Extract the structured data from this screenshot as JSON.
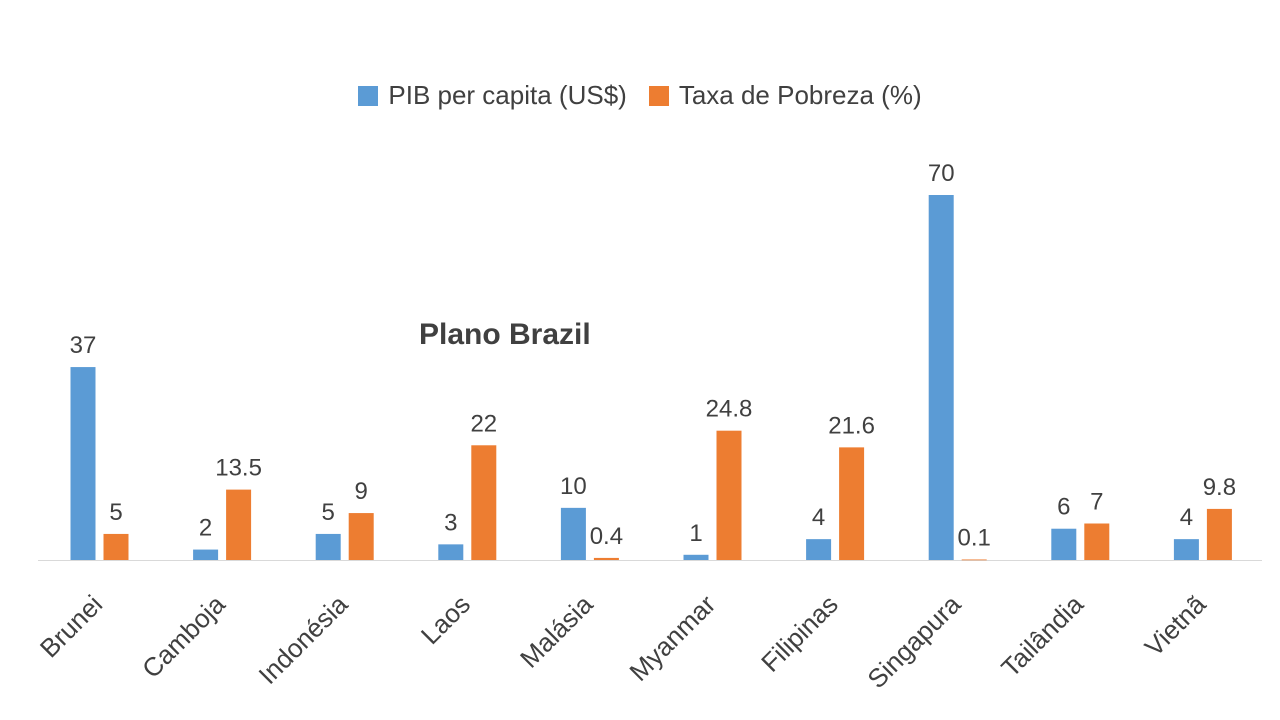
{
  "watermark": "Plano Brazil",
  "colors": {
    "series_1": "#5b9bd5",
    "series_2": "#ed7d31",
    "axis": "#d9d9d9",
    "text": "#404040"
  },
  "chart_data": {
    "type": "bar",
    "categories": [
      "Brunei",
      "Camboja",
      "Indonésia",
      "Laos",
      "Malásia",
      "Myanmar",
      "Filipinas",
      "Singapura",
      "Tailândia",
      "Vietnã"
    ],
    "series": [
      {
        "name": "PIB per capita (US$)",
        "values": [
          37,
          2,
          5,
          3,
          10,
          1,
          4,
          70,
          6,
          4
        ]
      },
      {
        "name": "Taxa de Pobreza (%)",
        "values": [
          5,
          13.5,
          9,
          22,
          0.4,
          24.8,
          21.6,
          0.1,
          7,
          9.8
        ]
      }
    ],
    "data_labels": true,
    "legend": "top-center",
    "grid": false,
    "ylim": [
      0,
      70
    ]
  }
}
